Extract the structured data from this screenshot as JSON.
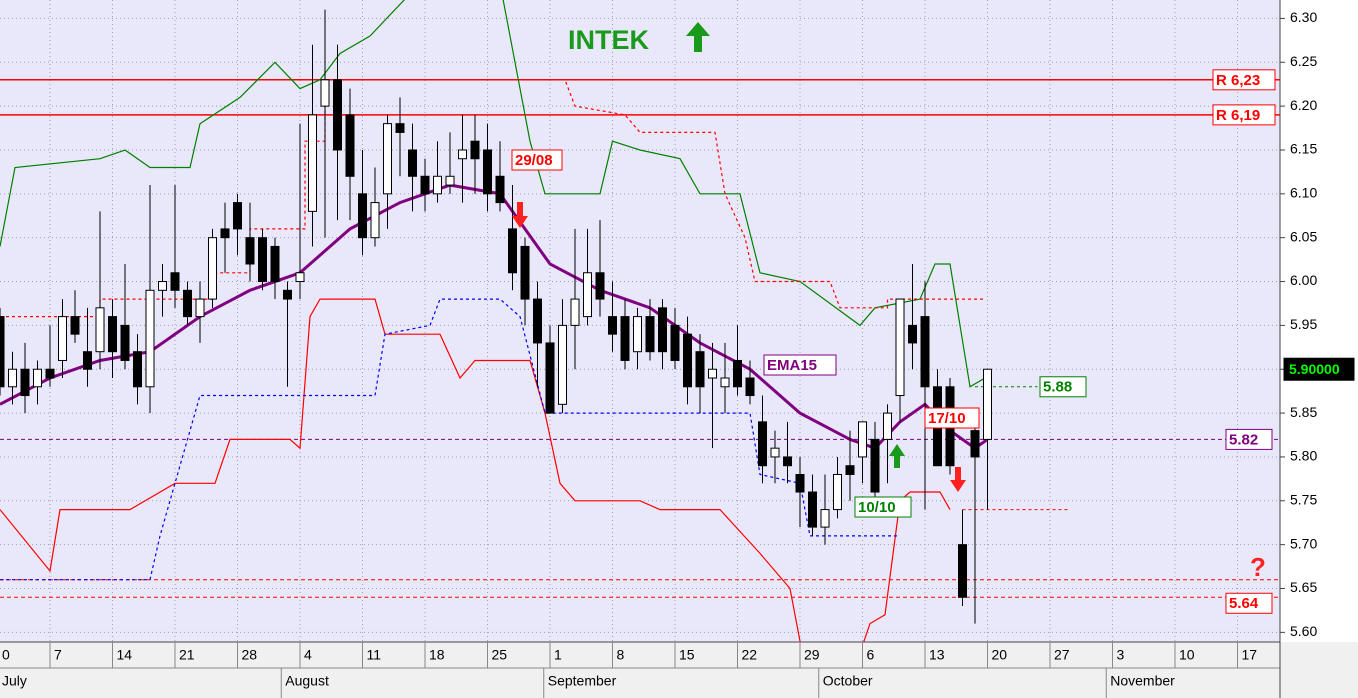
{
  "chart_data": {
    "type": "candlestick",
    "title": "INTEK",
    "x": [
      1,
      2,
      3,
      4,
      5,
      6,
      7,
      8,
      9,
      10,
      11,
      12,
      13,
      14,
      15,
      16,
      17,
      18,
      19,
      20,
      21,
      22,
      23,
      24,
      25,
      26,
      27,
      28,
      29,
      30,
      31,
      32,
      33,
      34,
      35,
      36,
      37,
      38,
      39,
      40,
      41,
      42,
      43,
      44,
      45,
      46,
      47,
      48,
      49,
      50,
      51,
      52,
      53,
      54,
      55,
      56,
      57,
      58,
      59,
      60,
      61,
      62,
      63,
      64,
      65,
      66,
      67,
      68,
      69,
      70,
      71,
      72,
      73,
      74,
      75,
      76,
      77,
      78,
      79,
      80
    ],
    "ohlc": [
      [
        5.96,
        5.97,
        5.87,
        5.88
      ],
      [
        5.88,
        5.92,
        5.86,
        5.9
      ],
      [
        5.9,
        5.93,
        5.85,
        5.87
      ],
      [
        5.88,
        5.91,
        5.86,
        5.9
      ],
      [
        5.9,
        5.95,
        5.88,
        5.89
      ],
      [
        5.91,
        5.98,
        5.89,
        5.96
      ],
      [
        5.96,
        5.99,
        5.93,
        5.94
      ],
      [
        5.92,
        5.97,
        5.88,
        5.9
      ],
      [
        5.92,
        6.08,
        5.9,
        5.97
      ],
      [
        5.96,
        5.98,
        5.89,
        5.92
      ],
      [
        5.95,
        6.02,
        5.9,
        5.91
      ],
      [
        5.92,
        5.94,
        5.86,
        5.88
      ],
      [
        5.88,
        6.11,
        5.85,
        5.99
      ],
      [
        5.99,
        6.02,
        5.96,
        6.0
      ],
      [
        6.01,
        6.11,
        5.97,
        5.99
      ],
      [
        5.99,
        6.0,
        5.95,
        5.96
      ],
      [
        5.96,
        6.0,
        5.93,
        5.98
      ],
      [
        5.98,
        6.06,
        5.97,
        6.05
      ],
      [
        6.06,
        6.09,
        6.01,
        6.05
      ],
      [
        6.09,
        6.1,
        6.03,
        6.06
      ],
      [
        6.05,
        6.09,
        6.0,
        6.02
      ],
      [
        6.05,
        6.06,
        5.99,
        6.0
      ],
      [
        6.04,
        6.05,
        5.98,
        6.0
      ],
      [
        5.99,
        6.0,
        5.88,
        5.98
      ],
      [
        6.0,
        6.18,
        5.98,
        6.01
      ],
      [
        6.08,
        6.27,
        6.04,
        6.19
      ],
      [
        6.2,
        6.31,
        6.05,
        6.23
      ],
      [
        6.23,
        6.27,
        6.07,
        6.15
      ],
      [
        6.19,
        6.22,
        6.07,
        6.12
      ],
      [
        6.1,
        6.15,
        6.03,
        6.05
      ],
      [
        6.05,
        6.13,
        6.04,
        6.09
      ],
      [
        6.1,
        6.19,
        6.06,
        6.18
      ],
      [
        6.18,
        6.21,
        6.12,
        6.17
      ],
      [
        6.15,
        6.18,
        6.08,
        6.12
      ],
      [
        6.12,
        6.14,
        6.08,
        6.1
      ],
      [
        6.1,
        6.16,
        6.09,
        6.12
      ],
      [
        6.11,
        6.17,
        6.1,
        6.12
      ],
      [
        6.14,
        6.19,
        6.09,
        6.15
      ],
      [
        6.16,
        6.19,
        6.1,
        6.14
      ],
      [
        6.15,
        6.18,
        6.08,
        6.1
      ],
      [
        6.12,
        6.16,
        6.08,
        6.09
      ],
      [
        6.06,
        6.11,
        5.99,
        6.01
      ],
      [
        6.04,
        6.05,
        5.95,
        5.98
      ],
      [
        5.98,
        6.0,
        5.88,
        5.93
      ],
      [
        5.93,
        5.95,
        5.85,
        5.85
      ],
      [
        5.86,
        5.98,
        5.85,
        5.95
      ],
      [
        5.95,
        6.06,
        5.9,
        5.98
      ],
      [
        5.96,
        6.06,
        5.95,
        6.01
      ],
      [
        6.01,
        6.07,
        5.96,
        5.98
      ],
      [
        5.96,
        6.0,
        5.92,
        5.94
      ],
      [
        5.96,
        5.98,
        5.9,
        5.91
      ],
      [
        5.92,
        5.97,
        5.9,
        5.96
      ],
      [
        5.96,
        5.98,
        5.91,
        5.92
      ],
      [
        5.97,
        5.98,
        5.9,
        5.92
      ],
      [
        5.95,
        5.97,
        5.9,
        5.91
      ],
      [
        5.94,
        5.96,
        5.86,
        5.88
      ],
      [
        5.92,
        5.94,
        5.85,
        5.88
      ],
      [
        5.89,
        5.93,
        5.81,
        5.9
      ],
      [
        5.88,
        5.93,
        5.85,
        5.89
      ],
      [
        5.91,
        5.95,
        5.87,
        5.88
      ],
      [
        5.89,
        5.91,
        5.86,
        5.87
      ],
      [
        5.84,
        5.87,
        5.77,
        5.79
      ],
      [
        5.8,
        5.83,
        5.77,
        5.81
      ],
      [
        5.8,
        5.84,
        5.77,
        5.79
      ],
      [
        5.78,
        5.8,
        5.72,
        5.76
      ],
      [
        5.76,
        5.78,
        5.71,
        5.72
      ],
      [
        5.72,
        5.78,
        5.7,
        5.74
      ],
      [
        5.74,
        5.8,
        5.73,
        5.78
      ],
      [
        5.79,
        5.83,
        5.75,
        5.78
      ],
      [
        5.8,
        5.84,
        5.77,
        5.84
      ],
      [
        5.82,
        5.84,
        5.74,
        5.76
      ],
      [
        5.82,
        5.86,
        5.77,
        5.85
      ],
      [
        5.87,
        5.98,
        5.84,
        5.98
      ],
      [
        5.95,
        6.02,
        5.9,
        5.93
      ],
      [
        5.96,
        6.0,
        5.74,
        5.88
      ],
      [
        5.88,
        5.9,
        5.79,
        5.79
      ],
      [
        5.88,
        5.89,
        5.78,
        5.79
      ],
      [
        5.7,
        5.74,
        5.63,
        5.64
      ],
      [
        5.83,
        5.84,
        5.61,
        5.8
      ],
      [
        5.82,
        5.9,
        5.74,
        5.9
      ]
    ],
    "series": [
      {
        "name": "EMA15",
        "color": "#800080",
        "x": [
          1,
          5,
          9,
          13,
          17,
          21,
          25,
          29,
          33,
          37,
          41,
          45,
          49,
          53,
          57,
          61,
          65,
          69,
          71,
          73,
          75,
          77,
          79,
          80
        ],
        "values": [
          5.86,
          5.89,
          5.91,
          5.92,
          5.96,
          5.99,
          6.01,
          6.06,
          6.09,
          6.11,
          6.1,
          6.02,
          5.99,
          5.97,
          5.93,
          5.9,
          5.85,
          5.82,
          5.81,
          5.84,
          5.86,
          5.83,
          5.81,
          5.82
        ]
      },
      {
        "color": "#008000",
        "x": [
          1,
          2.2,
          9,
          11,
          13,
          16.2,
          17,
          20.2,
          23,
          25,
          26.6,
          28.2,
          30.6,
          34.6,
          41,
          43.4,
          44.6,
          49,
          50,
          52.2,
          55.4,
          57,
          60.2,
          61.8,
          65,
          69.8,
          71,
          74.6,
          75.8,
          77,
          78.6,
          79.8
        ],
        "values": [
          6.04,
          6.13,
          6.14,
          6.15,
          6.13,
          6.13,
          6.18,
          6.21,
          6.25,
          6.22,
          6.23,
          6.26,
          6.28,
          6.34,
          6.34,
          6.16,
          6.1,
          6.1,
          6.16,
          6.15,
          6.14,
          6.1,
          6.1,
          6.01,
          6.0,
          5.95,
          5.97,
          5.98,
          6.02,
          6.02,
          5.88,
          5.89
        ]
      },
      {
        "color": "#ff0000",
        "x": [
          1,
          5,
          5.8,
          11.4,
          15,
          18.2,
          19.4,
          24.2,
          25,
          25.8,
          26.6,
          31,
          31.8,
          36.2,
          37.8,
          39,
          43.4,
          44.6,
          45.8,
          47,
          52.2,
          53.8,
          58.6,
          61.8,
          64.2,
          65.4,
          69.4,
          70.6,
          71.8,
          73,
          73.8,
          76.2,
          77
        ],
        "values": [
          5.74,
          5.67,
          5.74,
          5.74,
          5.77,
          5.77,
          5.82,
          5.82,
          5.81,
          5.96,
          5.98,
          5.98,
          5.94,
          5.94,
          5.89,
          5.91,
          5.91,
          5.85,
          5.77,
          5.75,
          5.75,
          5.74,
          5.74,
          5.69,
          5.65,
          5.56,
          5.56,
          5.61,
          5.62,
          5.75,
          5.76,
          5.76,
          5.74
        ]
      },
      {
        "color": "#ff0000",
        "dash": true,
        "x": [
          1,
          9,
          9,
          18.2,
          18.2,
          21,
          21,
          25.4,
          25.4,
          27,
          27,
          46.2,
          47,
          51,
          52.2,
          58.2,
          59,
          60.6,
          61.4,
          67.4,
          68.2,
          72,
          72,
          79.8
        ],
        "values": [
          5.96,
          5.96,
          5.98,
          5.98,
          6.01,
          6.01,
          6.06,
          6.06,
          6.16,
          6.16,
          6.23,
          6.23,
          6.2,
          6.19,
          6.17,
          6.17,
          6.1,
          6.05,
          6.0,
          6.0,
          5.97,
          5.97,
          5.98,
          5.98
        ]
      },
      {
        "color": "#0000ff",
        "dash": true,
        "x": [
          1,
          13,
          13.8,
          15.4,
          17,
          31,
          31.8,
          35.4,
          36.2,
          41,
          42.6,
          44.6,
          61,
          61.8,
          65,
          65.8,
          73
        ],
        "values": [
          5.66,
          5.66,
          5.71,
          5.79,
          5.87,
          5.87,
          5.94,
          5.95,
          5.98,
          5.98,
          5.96,
          5.85,
          5.85,
          5.78,
          5.77,
          5.71,
          5.71
        ]
      }
    ],
    "levels": [
      {
        "value": 6.23,
        "label": "R 6,23",
        "color": "#ff0000"
      },
      {
        "value": 6.19,
        "label": "R 6,19",
        "color": "#ff0000"
      },
      {
        "value": 5.82,
        "color": "#800080",
        "dash": true
      },
      {
        "value": 5.66,
        "color": "#ff0000",
        "dash": true
      },
      {
        "value": 5.64,
        "color": "#ff0000",
        "dash": true
      }
    ],
    "short_levels": [
      {
        "value": 5.88,
        "color": "#008000",
        "from": 79,
        "to": 84
      },
      {
        "value": 5.74,
        "color": "#ff0000",
        "from": 78,
        "to": 86.6
      }
    ],
    "last_price": {
      "value": 5.9,
      "label": "5.90000"
    },
    "annotations": [
      "29/08",
      "10/10",
      "17/10",
      "?"
    ],
    "xlim": [
      1,
      103.4
    ],
    "ylim": [
      5.589,
      6.321
    ],
    "yticks": [
      {
        "value": 5.6,
        "label": "5.60"
      },
      {
        "value": 5.65,
        "label": "5.65"
      },
      {
        "value": 5.7,
        "label": "5.70"
      },
      {
        "value": 5.75,
        "label": "5.75"
      },
      {
        "value": 5.8,
        "label": "5.80"
      },
      {
        "value": 5.85,
        "label": "5.85"
      },
      {
        "value": 5.9,
        "label": "5.90"
      },
      {
        "value": 5.95,
        "label": "5.95"
      },
      {
        "value": 6.0,
        "label": "6.00"
      },
      {
        "value": 6.05,
        "label": "6.05"
      },
      {
        "value": 6.1,
        "label": "6.10"
      },
      {
        "value": 6.15,
        "label": "6.15"
      },
      {
        "value": 6.2,
        "label": "6.20"
      },
      {
        "value": 6.25,
        "label": "6.25"
      },
      {
        "value": 6.3,
        "label": "6.30"
      }
    ],
    "xticks": [
      {
        "value": 0,
        "label": "0"
      },
      {
        "value": 5,
        "label": "7"
      },
      {
        "value": 10,
        "label": "14"
      },
      {
        "value": 15,
        "label": "21"
      },
      {
        "value": 20,
        "label": "28"
      },
      {
        "value": 25,
        "label": "4"
      },
      {
        "value": 30,
        "label": "11"
      },
      {
        "value": 35,
        "label": "18"
      },
      {
        "value": 40,
        "label": "25"
      },
      {
        "value": 45,
        "label": "1"
      },
      {
        "value": 50,
        "label": "8"
      },
      {
        "value": 55,
        "label": "15"
      },
      {
        "value": 60,
        "label": "22"
      },
      {
        "value": 65,
        "label": "29"
      },
      {
        "value": 70,
        "label": "6"
      },
      {
        "value": 75,
        "label": "13"
      },
      {
        "value": 80,
        "label": "20"
      },
      {
        "value": 85,
        "label": "27"
      },
      {
        "value": 90,
        "label": "3"
      },
      {
        "value": 95,
        "label": "10"
      },
      {
        "value": 100,
        "label": "17"
      }
    ],
    "months": [
      {
        "value": 0,
        "label": "July"
      },
      {
        "value": 24,
        "label": "August"
      },
      {
        "value": 45,
        "label": "September"
      },
      {
        "value": 67,
        "label": "October"
      },
      {
        "value": 90,
        "label": "November"
      }
    ],
    "grid": true
  }
}
